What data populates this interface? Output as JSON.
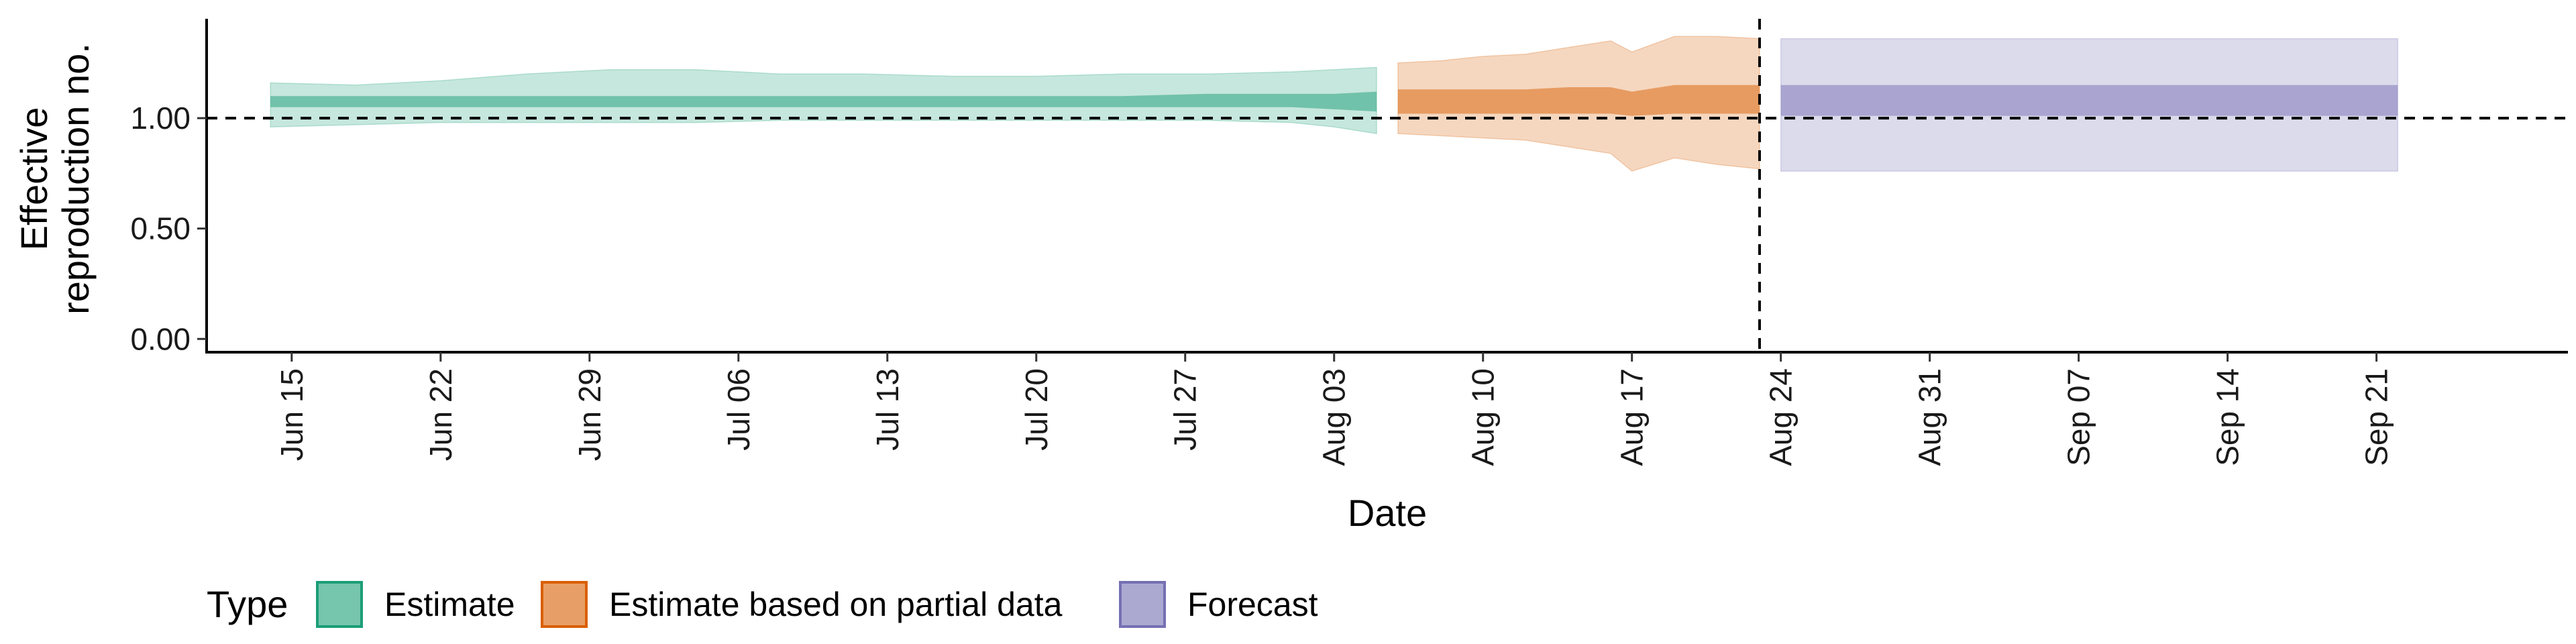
{
  "chart_data": {
    "type": "area",
    "xlabel": "Date",
    "ylabel_lines": [
      "Effective",
      "reproduction no."
    ],
    "x_range": [
      "2020-06-11",
      "2020-09-30"
    ],
    "ylim": [
      -0.06,
      1.45
    ],
    "y_ticks": [
      0.0,
      0.5,
      1.0
    ],
    "y_tick_labels": [
      "0.00",
      "0.50",
      "1.00"
    ],
    "x_ticks": [
      "2020-06-15",
      "2020-06-22",
      "2020-06-29",
      "2020-07-06",
      "2020-07-13",
      "2020-07-20",
      "2020-07-27",
      "2020-08-03",
      "2020-08-10",
      "2020-08-17",
      "2020-08-24",
      "2020-08-31",
      "2020-09-07",
      "2020-09-14",
      "2020-09-21"
    ],
    "x_tick_labels": [
      "Jun 15",
      "Jun 22",
      "Jun 29",
      "Jul 06",
      "Jul 13",
      "Jul 20",
      "Jul 27",
      "Aug 03",
      "Aug 10",
      "Aug 17",
      "Aug 24",
      "Aug 31",
      "Sep 07",
      "Sep 14",
      "Sep 21"
    ],
    "hline_y": 1.0,
    "vline_date": "2020-08-23",
    "grid": false,
    "legend": {
      "title": "Type",
      "placement": "bottom-left",
      "entries": [
        "Estimate",
        "Estimate based on partial data",
        "Forecast"
      ]
    },
    "series": [
      {
        "name": "Estimate",
        "fill": "#1b9e77",
        "stroke": "#1b9e77",
        "points": [
          {
            "x": "2020-06-14",
            "lo90": 0.96,
            "hi90": 1.16,
            "lo50": 1.05,
            "hi50": 1.1
          },
          {
            "x": "2020-06-18",
            "lo90": 0.97,
            "hi90": 1.15,
            "lo50": 1.05,
            "hi50": 1.1
          },
          {
            "x": "2020-06-22",
            "lo90": 0.98,
            "hi90": 1.17,
            "lo50": 1.05,
            "hi50": 1.1
          },
          {
            "x": "2020-06-26",
            "lo90": 0.98,
            "hi90": 1.2,
            "lo50": 1.05,
            "hi50": 1.1
          },
          {
            "x": "2020-06-30",
            "lo90": 0.98,
            "hi90": 1.22,
            "lo50": 1.05,
            "hi50": 1.1
          },
          {
            "x": "2020-07-04",
            "lo90": 0.98,
            "hi90": 1.22,
            "lo50": 1.05,
            "hi50": 1.1
          },
          {
            "x": "2020-07-08",
            "lo90": 0.99,
            "hi90": 1.2,
            "lo50": 1.05,
            "hi50": 1.1
          },
          {
            "x": "2020-07-12",
            "lo90": 0.99,
            "hi90": 1.2,
            "lo50": 1.05,
            "hi50": 1.1
          },
          {
            "x": "2020-07-16",
            "lo90": 0.99,
            "hi90": 1.19,
            "lo50": 1.05,
            "hi50": 1.1
          },
          {
            "x": "2020-07-20",
            "lo90": 0.99,
            "hi90": 1.19,
            "lo50": 1.05,
            "hi50": 1.1
          },
          {
            "x": "2020-07-24",
            "lo90": 0.99,
            "hi90": 1.2,
            "lo50": 1.05,
            "hi50": 1.1
          },
          {
            "x": "2020-07-28",
            "lo90": 0.99,
            "hi90": 1.2,
            "lo50": 1.05,
            "hi50": 1.11
          },
          {
            "x": "2020-08-01",
            "lo90": 0.98,
            "hi90": 1.21,
            "lo50": 1.05,
            "hi50": 1.11
          },
          {
            "x": "2020-08-03",
            "lo90": 0.96,
            "hi90": 1.22,
            "lo50": 1.04,
            "hi50": 1.11
          },
          {
            "x": "2020-08-05",
            "lo90": 0.93,
            "hi90": 1.23,
            "lo50": 1.03,
            "hi50": 1.12
          }
        ]
      },
      {
        "name": "Estimate based on partial data",
        "fill": "#d95f02",
        "stroke": "#d95f02",
        "points": [
          {
            "x": "2020-08-06",
            "lo90": 0.93,
            "hi90": 1.25,
            "lo50": 1.02,
            "hi50": 1.13
          },
          {
            "x": "2020-08-08",
            "lo90": 0.92,
            "hi90": 1.26,
            "lo50": 1.02,
            "hi50": 1.13
          },
          {
            "x": "2020-08-10",
            "lo90": 0.91,
            "hi90": 1.28,
            "lo50": 1.02,
            "hi50": 1.13
          },
          {
            "x": "2020-08-12",
            "lo90": 0.9,
            "hi90": 1.29,
            "lo50": 1.02,
            "hi50": 1.13
          },
          {
            "x": "2020-08-14",
            "lo90": 0.87,
            "hi90": 1.32,
            "lo50": 1.02,
            "hi50": 1.14
          },
          {
            "x": "2020-08-16",
            "lo90": 0.84,
            "hi90": 1.35,
            "lo50": 1.02,
            "hi50": 1.14
          },
          {
            "x": "2020-08-17",
            "lo90": 0.76,
            "hi90": 1.3,
            "lo50": 1.01,
            "hi50": 1.12
          },
          {
            "x": "2020-08-19",
            "lo90": 0.82,
            "hi90": 1.37,
            "lo50": 1.02,
            "hi50": 1.15
          },
          {
            "x": "2020-08-21",
            "lo90": 0.79,
            "hi90": 1.37,
            "lo50": 1.02,
            "hi50": 1.15
          },
          {
            "x": "2020-08-23",
            "lo90": 0.77,
            "hi90": 1.36,
            "lo50": 1.02,
            "hi50": 1.15
          }
        ]
      },
      {
        "name": "Forecast",
        "fill": "#7570b3",
        "stroke": "#7570b3",
        "points": [
          {
            "x": "2020-08-24",
            "lo90": 0.76,
            "hi90": 1.36,
            "lo50": 1.01,
            "hi50": 1.15
          },
          {
            "x": "2020-09-22",
            "lo90": 0.76,
            "hi90": 1.36,
            "lo50": 1.01,
            "hi50": 1.15
          }
        ]
      }
    ]
  }
}
